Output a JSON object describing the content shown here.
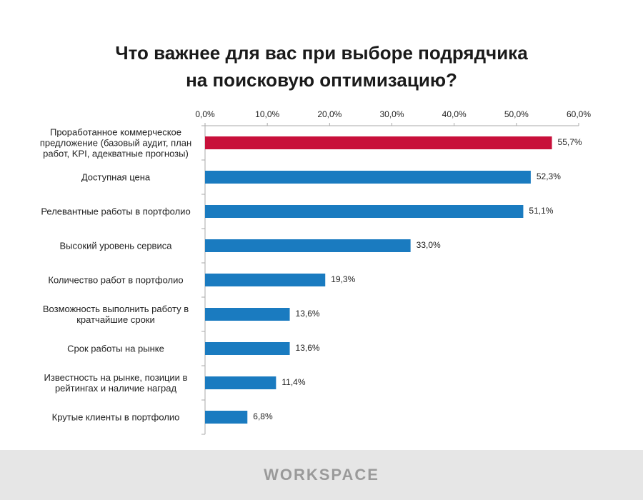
{
  "chart_data": {
    "type": "hbar",
    "title": [
      "Что важнее для вас при выборе подрядчика",
      "на поисковую оптимизацию?"
    ],
    "categories": [
      "Проработанное коммерческое\nпредложение (базовый аудит, план\nработ, KPI, адекватные прогнозы)",
      "Доступная цена",
      "Релевантные работы в портфолио",
      "Высокий уровень сервиса",
      "Количество работ в портфолио",
      "Возможность выполнить работу в\nкратчайшие сроки",
      "Срок работы на рынке",
      "Известность на рынке, позиции в\nрейтингах и наличие наград",
      "Крутые клиенты в портфолио"
    ],
    "values": [
      55.7,
      52.3,
      51.1,
      33.0,
      19.3,
      13.6,
      13.6,
      11.4,
      6.8
    ],
    "value_labels": [
      "55,7%",
      "52,3%",
      "51,1%",
      "33,0%",
      "19,3%",
      "13,6%",
      "13,6%",
      "11,4%",
      "6,8%"
    ],
    "colors": [
      "#c8103a",
      "#1a7bc0",
      "#1a7bc0",
      "#1a7bc0",
      "#1a7bc0",
      "#1a7bc0",
      "#1a7bc0",
      "#1a7bc0",
      "#1a7bc0"
    ],
    "xlim": [
      0,
      60
    ],
    "xticks": [
      {
        "value": 0,
        "label": "0,0%"
      },
      {
        "value": 10,
        "label": "10,0%"
      },
      {
        "value": 20,
        "label": "20,0%"
      },
      {
        "value": 30,
        "label": "30,0%"
      },
      {
        "value": 40,
        "label": "40,0%"
      },
      {
        "value": 50,
        "label": "50,0%"
      },
      {
        "value": 60,
        "label": "60,0%"
      }
    ],
    "footer": "WORKSPACE"
  }
}
